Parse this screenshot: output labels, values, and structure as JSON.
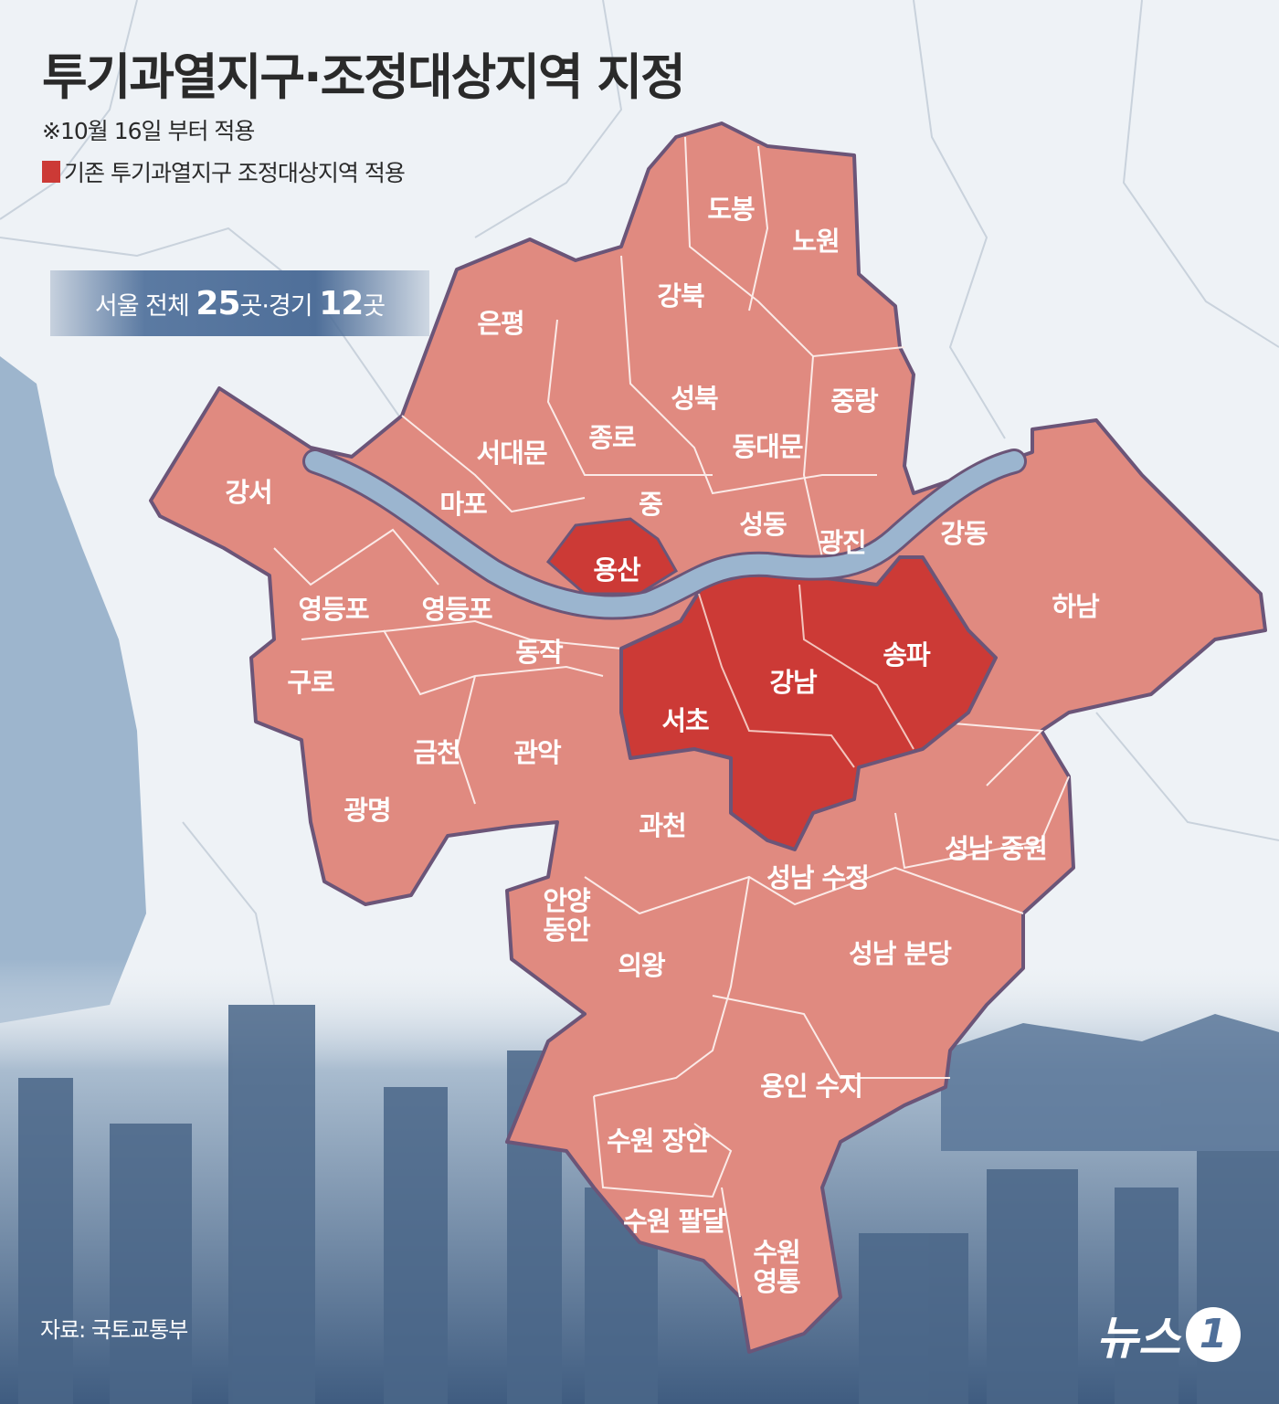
{
  "title": "투기과열지구·조정대상지역 지정",
  "note": "※10월 16일 부터 적용",
  "legend": {
    "label": "기존 투기과열지구 조정대상지역 적용",
    "color": "#cc3a36"
  },
  "banner": {
    "prefix": "서울 전체 ",
    "seoul_count": "25",
    "mid": "곳·경기 ",
    "gyeonggi_count": "12",
    "suffix": "곳"
  },
  "colors": {
    "designated": "#e08a80",
    "existing": "#cc3a36",
    "river": "#9bb5cf",
    "border": "#6b5578"
  },
  "regions": [
    {
      "name": "도봉",
      "existing": false
    },
    {
      "name": "노원",
      "existing": false
    },
    {
      "name": "강북",
      "existing": false
    },
    {
      "name": "은평",
      "existing": false
    },
    {
      "name": "성북",
      "existing": false
    },
    {
      "name": "중랑",
      "existing": false
    },
    {
      "name": "종로",
      "existing": false
    },
    {
      "name": "서대문",
      "existing": false
    },
    {
      "name": "동대문",
      "existing": false
    },
    {
      "name": "마포",
      "existing": false
    },
    {
      "name": "중",
      "existing": false
    },
    {
      "name": "성동",
      "existing": false
    },
    {
      "name": "광진",
      "existing": false
    },
    {
      "name": "강동",
      "existing": false
    },
    {
      "name": "강서",
      "existing": false
    },
    {
      "name": "용산",
      "existing": true
    },
    {
      "name": "하남",
      "existing": false
    },
    {
      "name": "영등포",
      "existing": false
    },
    {
      "name": "영등포",
      "existing": false
    },
    {
      "name": "송파",
      "existing": true
    },
    {
      "name": "강남",
      "existing": true
    },
    {
      "name": "동작",
      "existing": false
    },
    {
      "name": "구로",
      "existing": false
    },
    {
      "name": "서초",
      "existing": true
    },
    {
      "name": "금천",
      "existing": false
    },
    {
      "name": "관악",
      "existing": false
    },
    {
      "name": "광명",
      "existing": false
    },
    {
      "name": "과천",
      "existing": false
    },
    {
      "name": "성남 중원",
      "existing": false
    },
    {
      "name": "성남 수정",
      "existing": false
    },
    {
      "name": "안양\n동안",
      "existing": false
    },
    {
      "name": "성남 분당",
      "existing": false
    },
    {
      "name": "의왕",
      "existing": false
    },
    {
      "name": "용인 수지",
      "existing": false
    },
    {
      "name": "수원 장안",
      "existing": false
    },
    {
      "name": "수원 팔달",
      "existing": false
    },
    {
      "name": "수원\n영통",
      "existing": false
    }
  ],
  "source": "자료: 국토교통부",
  "logo": {
    "text": "뉴스",
    "mark": "1"
  }
}
